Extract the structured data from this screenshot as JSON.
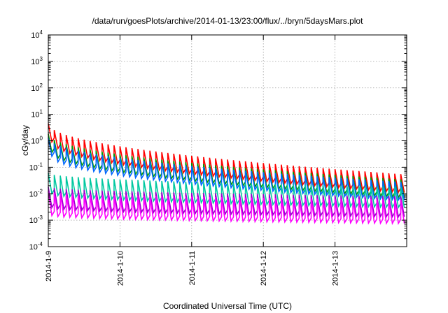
{
  "chart_data": {
    "type": "line",
    "title": "/data/run/goesPlots/archive/2014-01-13/23:00/flux/../bryn/5daysMars.plot",
    "xlabel": "Coordinated Universal Time (UTC)",
    "ylabel": "cGy/day",
    "y_scale": "log",
    "ylim_exp": [
      -4,
      4
    ],
    "y_ticks": [
      {
        "base": "10",
        "exp": "-4"
      },
      {
        "base": "10",
        "exp": "-3"
      },
      {
        "base": "10",
        "exp": "-2"
      },
      {
        "base": "10",
        "exp": "-1"
      },
      {
        "base": "10",
        "exp": "0"
      },
      {
        "base": "10",
        "exp": "1"
      },
      {
        "base": "10",
        "exp": "2"
      },
      {
        "base": "10",
        "exp": "3"
      },
      {
        "base": "10",
        "exp": "4"
      }
    ],
    "x_ticks": [
      "2014-1-9",
      "2014-1-10",
      "2014-1-11",
      "2014-1-12",
      "2014-1-13"
    ],
    "xlim_days": [
      0,
      5
    ],
    "grid": true,
    "teeth_per_day": 12,
    "series": [
      {
        "color": "#ff0000",
        "start_peak": 4.5,
        "end_peak": 0.055,
        "drop": 5.0
      },
      {
        "color": "#009900",
        "start_peak": 1.8,
        "end_peak": 0.035,
        "drop": 5.0
      },
      {
        "color": "#0066ff",
        "start_peak": 1.3,
        "end_peak": 0.028,
        "drop": 5.0
      },
      {
        "color": "#00c8a0",
        "start_peak": 0.06,
        "end_peak": 0.018,
        "drop": 6.0
      },
      {
        "color": "#9900cc",
        "start_peak": 0.018,
        "end_peak": 0.008,
        "drop": 6.0
      },
      {
        "color": "#ff00ff",
        "start_peak": 0.012,
        "end_peak": 0.006,
        "drop": 8.0
      }
    ]
  }
}
